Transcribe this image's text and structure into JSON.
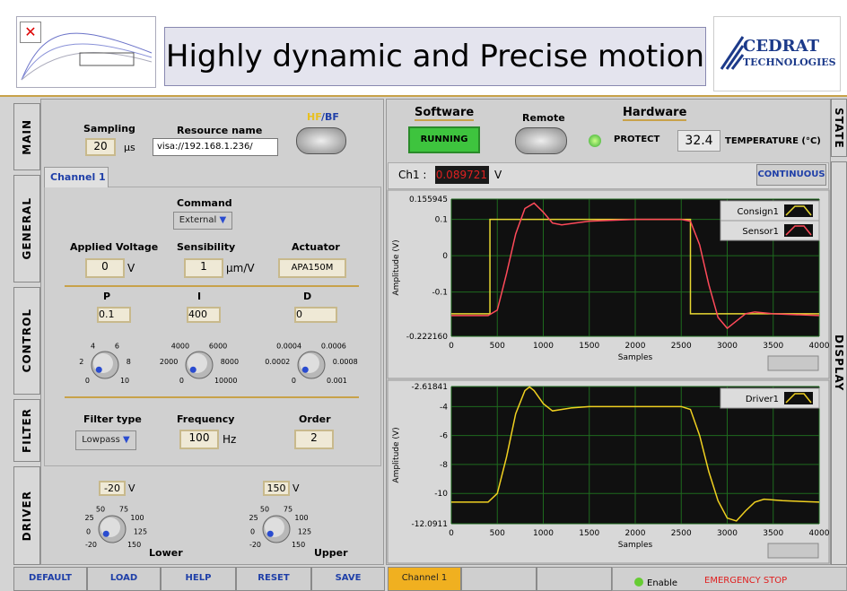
{
  "header": {
    "title": "Highly dynamic and Precise motion",
    "logo_name": "CEDRAT",
    "logo_sub": "TECHNOLOGIES"
  },
  "left_tabs": [
    "MAIN",
    "GENERAL",
    "CONTROL",
    "FILTER",
    "DRIVER"
  ],
  "main": {
    "sampling_label": "Sampling",
    "sampling": "20",
    "sampling_unit": "µs",
    "resource_label": "Resource name",
    "resource": "visa://192.168.1.236/",
    "hf": "HF",
    "bf": "/BF"
  },
  "channel_tab": "Channel 1",
  "command": {
    "label": "Command",
    "value": "External"
  },
  "applied": {
    "label": "Applied Voltage",
    "value": "0",
    "unit": "V"
  },
  "sensibility": {
    "label": "Sensibility",
    "value": "1",
    "unit": "µm/V"
  },
  "actuator": {
    "label": "Actuator",
    "value": "APA150M"
  },
  "pid": [
    {
      "label": "P",
      "value": "0.1",
      "scale": [
        "0",
        "2",
        "4",
        "6",
        "8",
        "10"
      ]
    },
    {
      "label": "I",
      "value": "400",
      "scale": [
        "0",
        "2000",
        "4000",
        "6000",
        "8000",
        "10000"
      ]
    },
    {
      "label": "D",
      "value": "0",
      "scale": [
        "0",
        "0.0002",
        "0.0004",
        "0.0006",
        "0.0008",
        "0.001"
      ]
    }
  ],
  "filter": {
    "type_label": "Filter type",
    "type": "Lowpass",
    "freq_label": "Frequency",
    "freq": "100",
    "freq_unit": "Hz",
    "order_label": "Order",
    "order": "2"
  },
  "driver": [
    {
      "value": "-20",
      "unit": "V",
      "label": "Lower",
      "scale": [
        "-20",
        "0",
        "25",
        "50",
        "75",
        "100",
        "125",
        "150"
      ]
    },
    {
      "value": "150",
      "unit": "V",
      "label": "Upper",
      "scale": [
        "-20",
        "0",
        "25",
        "50",
        "75",
        "100",
        "125",
        "150"
      ]
    }
  ],
  "buttons": [
    "DEFAULT",
    "LOAD",
    "HELP",
    "RESET",
    "SAVE"
  ],
  "status": {
    "software": "Software",
    "running": "RUNNING",
    "remote": "Remote",
    "hardware": "Hardware",
    "protect": "PROTECT",
    "temperature": "32.4",
    "temperature_label": "TEMPERATURE (°C)",
    "ch_label": "Ch1 :",
    "ch_value": "0.089721",
    "ch_unit": "V",
    "mode": "CONTINUOUS"
  },
  "bottom": {
    "channel": "Channel 1",
    "enable": "Enable",
    "stop": "EMERGENCY STOP"
  },
  "right_tabs": [
    "STATE",
    "DISPLAY"
  ],
  "chart_data": [
    {
      "type": "line",
      "x_label": "Samples",
      "y_label": "Amplitude (V)",
      "xlim": [
        0,
        4000
      ],
      "xticks": [
        0,
        500,
        1000,
        1500,
        2000,
        2500,
        3000,
        3500,
        4000
      ],
      "ylim": [
        -0.22216,
        0.155945
      ],
      "yticks": [
        0.155945,
        0.1,
        0,
        -0.1,
        {
          "value": -0.22216,
          "label": "-0.222160"
        }
      ],
      "grid": true,
      "series": [
        {
          "name": "Consign1",
          "color": "#e8d832",
          "x": [
            0,
            420,
            420,
            2600,
            2600,
            4000
          ],
          "values": [
            -0.16,
            -0.16,
            0.1,
            0.1,
            -0.16,
            -0.16
          ]
        },
        {
          "name": "Sensor1",
          "color": "#ff4a5a",
          "x": [
            0,
            400,
            500,
            600,
            700,
            800,
            900,
            1000,
            1100,
            1200,
            1500,
            2000,
            2500,
            2600,
            2700,
            2800,
            2900,
            3000,
            3100,
            3200,
            3300,
            3500,
            4000
          ],
          "values": [
            -0.165,
            -0.165,
            -0.15,
            -0.05,
            0.06,
            0.13,
            0.145,
            0.12,
            0.09,
            0.085,
            0.095,
            0.1,
            0.1,
            0.095,
            0.03,
            -0.08,
            -0.17,
            -0.2,
            -0.18,
            -0.16,
            -0.155,
            -0.16,
            -0.165
          ]
        }
      ]
    },
    {
      "type": "line",
      "x_label": "Samples",
      "y_label": "Amplitude (V)",
      "xlim": [
        0,
        4000
      ],
      "xticks": [
        0,
        500,
        1000,
        1500,
        2000,
        2500,
        3000,
        3500,
        4000
      ],
      "ylim": [
        -12.0911,
        -2.61841
      ],
      "yticks": [
        -2.61841,
        -4,
        -6,
        -8,
        -10,
        -12.0911
      ],
      "grid": true,
      "series": [
        {
          "name": "Driver1",
          "color": "#f0d020",
          "x": [
            0,
            400,
            500,
            600,
            700,
            800,
            850,
            900,
            1000,
            1100,
            1300,
            1500,
            2000,
            2500,
            2600,
            2700,
            2800,
            2900,
            3000,
            3100,
            3200,
            3300,
            3400,
            3600,
            4000
          ],
          "values": [
            -10.6,
            -10.6,
            -10,
            -7.5,
            -4.5,
            -2.9,
            -2.65,
            -2.9,
            -3.8,
            -4.3,
            -4.1,
            -4,
            -4,
            -4,
            -4.2,
            -6,
            -8.5,
            -10.5,
            -11.7,
            -11.9,
            -11.2,
            -10.6,
            -10.4,
            -10.5,
            -10.6
          ]
        }
      ]
    }
  ]
}
